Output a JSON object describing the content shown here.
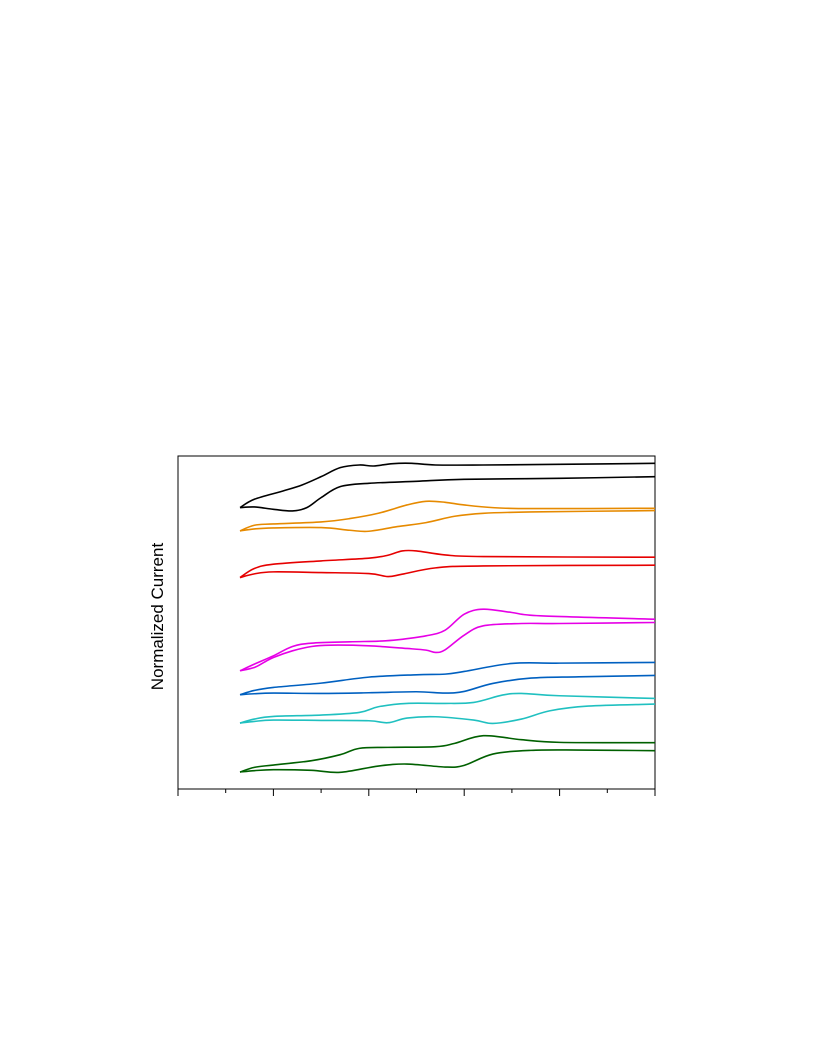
{
  "chart_data": {
    "type": "line",
    "title": "",
    "xlabel": "",
    "ylabel": "Normalized Current",
    "xlim": [
      0,
      5
    ],
    "x_major_ticks": [
      0,
      1,
      2,
      3,
      4,
      5
    ],
    "x_minor_ticks": [
      0.5,
      1.5,
      2.5,
      3.5,
      4.5
    ],
    "ylim": [
      0,
      1
    ],
    "grid": false,
    "legend": "none",
    "series": [
      {
        "color": "#000000",
        "upper": [
          [
            0.65,
            0.155
          ],
          [
            0.8,
            0.13
          ],
          [
            1.1,
            0.105
          ],
          [
            1.3,
            0.087
          ],
          [
            1.5,
            0.062
          ],
          [
            1.7,
            0.035
          ],
          [
            1.9,
            0.027
          ],
          [
            2.05,
            0.03
          ],
          [
            2.25,
            0.023
          ],
          [
            2.45,
            0.022
          ],
          [
            2.7,
            0.027
          ],
          [
            3.2,
            0.027
          ],
          [
            4.0,
            0.025
          ],
          [
            5.0,
            0.022
          ]
        ],
        "lower": [
          [
            0.65,
            0.155
          ],
          [
            0.8,
            0.153
          ],
          [
            1.0,
            0.16
          ],
          [
            1.2,
            0.165
          ],
          [
            1.35,
            0.155
          ],
          [
            1.5,
            0.125
          ],
          [
            1.7,
            0.092
          ],
          [
            2.0,
            0.082
          ],
          [
            2.5,
            0.076
          ],
          [
            3.0,
            0.07
          ],
          [
            4.0,
            0.067
          ],
          [
            5.0,
            0.062
          ]
        ]
      },
      {
        "color": "#e68a00",
        "upper": [
          [
            0.65,
            0.225
          ],
          [
            0.8,
            0.208
          ],
          [
            1.0,
            0.204
          ],
          [
            1.5,
            0.198
          ],
          [
            1.8,
            0.188
          ],
          [
            2.1,
            0.172
          ],
          [
            2.4,
            0.147
          ],
          [
            2.6,
            0.136
          ],
          [
            2.8,
            0.139
          ],
          [
            3.0,
            0.147
          ],
          [
            3.3,
            0.155
          ],
          [
            3.7,
            0.158
          ],
          [
            5.0,
            0.157
          ]
        ],
        "lower": [
          [
            0.65,
            0.225
          ],
          [
            0.8,
            0.219
          ],
          [
            1.0,
            0.216
          ],
          [
            1.5,
            0.215
          ],
          [
            1.8,
            0.223
          ],
          [
            2.0,
            0.226
          ],
          [
            2.3,
            0.212
          ],
          [
            2.6,
            0.2
          ],
          [
            2.9,
            0.181
          ],
          [
            3.2,
            0.172
          ],
          [
            3.7,
            0.168
          ],
          [
            5.0,
            0.164
          ]
        ]
      },
      {
        "color": "#e60000",
        "upper": [
          [
            0.65,
            0.365
          ],
          [
            0.8,
            0.338
          ],
          [
            1.0,
            0.325
          ],
          [
            1.5,
            0.315
          ],
          [
            2.0,
            0.307
          ],
          [
            2.2,
            0.298
          ],
          [
            2.35,
            0.285
          ],
          [
            2.5,
            0.285
          ],
          [
            2.8,
            0.297
          ],
          [
            3.2,
            0.302
          ],
          [
            5.0,
            0.304
          ]
        ],
        "lower": [
          [
            0.65,
            0.365
          ],
          [
            0.8,
            0.354
          ],
          [
            1.0,
            0.348
          ],
          [
            1.5,
            0.35
          ],
          [
            2.0,
            0.353
          ],
          [
            2.2,
            0.362
          ],
          [
            2.35,
            0.355
          ],
          [
            2.7,
            0.336
          ],
          [
            3.2,
            0.33
          ],
          [
            5.0,
            0.328
          ]
        ]
      },
      {
        "color": "#e600e6",
        "upper": [
          [
            0.65,
            0.645
          ],
          [
            0.8,
            0.625
          ],
          [
            1.0,
            0.6
          ],
          [
            1.2,
            0.572
          ],
          [
            1.4,
            0.562
          ],
          [
            1.8,
            0.558
          ],
          [
            2.1,
            0.556
          ],
          [
            2.3,
            0.552
          ],
          [
            2.6,
            0.54
          ],
          [
            2.8,
            0.523
          ],
          [
            3.0,
            0.475
          ],
          [
            3.2,
            0.46
          ],
          [
            3.5,
            0.47
          ],
          [
            3.8,
            0.48
          ],
          [
            5.0,
            0.49
          ]
        ],
        "lower": [
          [
            0.65,
            0.645
          ],
          [
            0.8,
            0.635
          ],
          [
            0.9,
            0.62
          ],
          [
            1.0,
            0.605
          ],
          [
            1.2,
            0.585
          ],
          [
            1.4,
            0.572
          ],
          [
            1.6,
            0.568
          ],
          [
            2.0,
            0.57
          ],
          [
            2.4,
            0.578
          ],
          [
            2.6,
            0.583
          ],
          [
            2.7,
            0.59
          ],
          [
            2.8,
            0.582
          ],
          [
            3.0,
            0.538
          ],
          [
            3.2,
            0.51
          ],
          [
            3.6,
            0.503
          ],
          [
            4.0,
            0.503
          ],
          [
            5.0,
            0.5
          ]
        ]
      },
      {
        "color": "#0060c0",
        "upper": [
          [
            0.65,
            0.717
          ],
          [
            0.8,
            0.704
          ],
          [
            1.0,
            0.695
          ],
          [
            1.5,
            0.682
          ],
          [
            2.0,
            0.664
          ],
          [
            2.5,
            0.657
          ],
          [
            2.8,
            0.655
          ],
          [
            3.0,
            0.647
          ],
          [
            3.5,
            0.623
          ],
          [
            4.0,
            0.622
          ],
          [
            5.0,
            0.62
          ]
        ],
        "lower": [
          [
            0.65,
            0.717
          ],
          [
            0.8,
            0.714
          ],
          [
            1.0,
            0.712
          ],
          [
            1.5,
            0.713
          ],
          [
            2.0,
            0.711
          ],
          [
            2.5,
            0.708
          ],
          [
            2.8,
            0.712
          ],
          [
            3.0,
            0.707
          ],
          [
            3.3,
            0.683
          ],
          [
            3.7,
            0.667
          ],
          [
            4.2,
            0.663
          ],
          [
            5.0,
            0.659
          ]
        ]
      },
      {
        "color": "#20c0c0",
        "upper": [
          [
            0.65,
            0.802
          ],
          [
            0.8,
            0.79
          ],
          [
            1.0,
            0.782
          ],
          [
            1.5,
            0.778
          ],
          [
            1.9,
            0.77
          ],
          [
            2.1,
            0.753
          ],
          [
            2.4,
            0.743
          ],
          [
            2.8,
            0.743
          ],
          [
            3.1,
            0.74
          ],
          [
            3.4,
            0.718
          ],
          [
            3.6,
            0.713
          ],
          [
            4.0,
            0.72
          ],
          [
            5.0,
            0.728
          ]
        ],
        "lower": [
          [
            0.65,
            0.802
          ],
          [
            0.8,
            0.797
          ],
          [
            1.0,
            0.793
          ],
          [
            1.5,
            0.794
          ],
          [
            2.0,
            0.795
          ],
          [
            2.2,
            0.801
          ],
          [
            2.4,
            0.787
          ],
          [
            2.7,
            0.783
          ],
          [
            3.1,
            0.793
          ],
          [
            3.3,
            0.803
          ],
          [
            3.6,
            0.79
          ],
          [
            3.9,
            0.765
          ],
          [
            4.3,
            0.751
          ],
          [
            5.0,
            0.745
          ]
        ]
      },
      {
        "color": "#006000",
        "upper": [
          [
            0.65,
            0.949
          ],
          [
            0.8,
            0.935
          ],
          [
            1.0,
            0.928
          ],
          [
            1.4,
            0.915
          ],
          [
            1.7,
            0.897
          ],
          [
            1.9,
            0.878
          ],
          [
            2.2,
            0.875
          ],
          [
            2.7,
            0.873
          ],
          [
            2.9,
            0.863
          ],
          [
            3.2,
            0.84
          ],
          [
            3.6,
            0.852
          ],
          [
            4.0,
            0.86
          ],
          [
            5.0,
            0.861
          ]
        ],
        "lower": [
          [
            0.65,
            0.949
          ],
          [
            0.8,
            0.945
          ],
          [
            1.0,
            0.942
          ],
          [
            1.4,
            0.944
          ],
          [
            1.7,
            0.95
          ],
          [
            2.1,
            0.931
          ],
          [
            2.4,
            0.925
          ],
          [
            2.8,
            0.934
          ],
          [
            3.0,
            0.929
          ],
          [
            3.3,
            0.895
          ],
          [
            3.7,
            0.884
          ],
          [
            4.2,
            0.883
          ],
          [
            5.0,
            0.885
          ]
        ]
      }
    ]
  }
}
